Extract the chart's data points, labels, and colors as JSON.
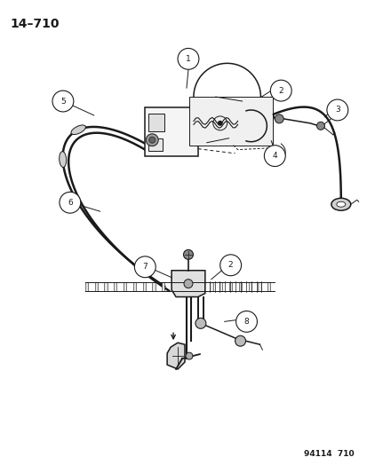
{
  "title": "14–710",
  "footer": "94114  710",
  "bg_color": "#ffffff",
  "fg_color": "#1a1a1a",
  "lw_cable": 1.8,
  "lw_part": 1.1,
  "lw_thin": 0.7,
  "callout_r": 0.018,
  "callout_fs": 6.5,
  "title_fontsize": 10,
  "footer_fontsize": 6.5
}
